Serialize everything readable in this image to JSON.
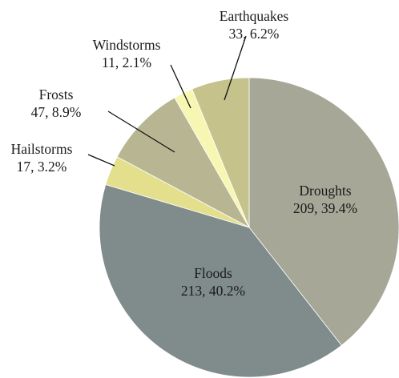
{
  "chart_data": {
    "type": "pie",
    "title": "",
    "slices": [
      {
        "name": "Droughts",
        "value": 209,
        "percent": "39.4%",
        "label": "209, 39.4%",
        "color": "#a6a797"
      },
      {
        "name": "Floods",
        "value": 213,
        "percent": "40.2%",
        "label": "213, 40.2%",
        "color": "#7f8c8b"
      },
      {
        "name": "Hailstorms",
        "value": 17,
        "percent": "3.2%",
        "label": "17, 3.2%",
        "color": "#e3df8d"
      },
      {
        "name": "Frosts",
        "value": 47,
        "percent": "8.9%",
        "label": "47, 8.9%",
        "color": "#b8b692"
      },
      {
        "name": "Windstorms",
        "value": 11,
        "percent": "2.1%",
        "label": "11, 2.1%",
        "color": "#f7f6b2"
      },
      {
        "name": "Earthquakes",
        "value": 33,
        "percent": "6.2%",
        "label": "33, 6.2%",
        "color": "#c6c28b"
      }
    ],
    "start_angle": "12 o'clock",
    "direction": "clockwise",
    "legend": "none"
  }
}
